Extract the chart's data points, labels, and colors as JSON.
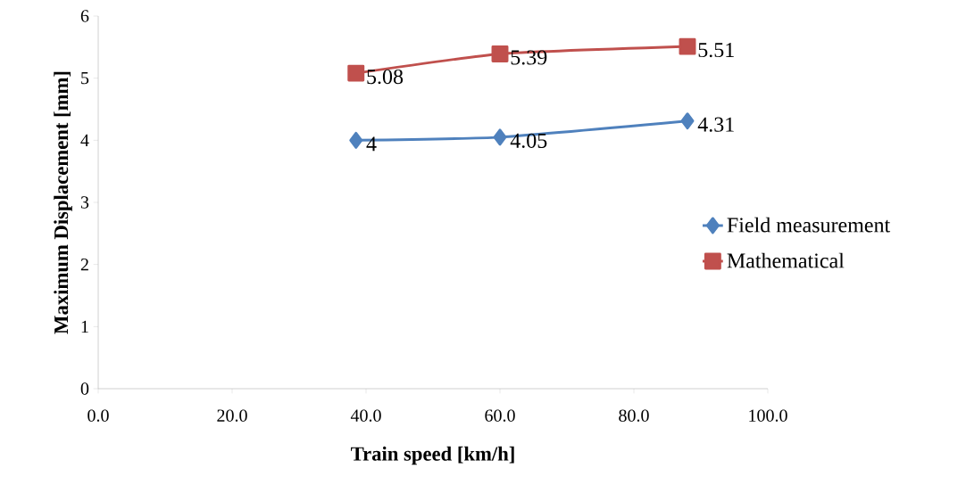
{
  "chart_data": {
    "type": "line",
    "xlabel": "Train speed [km/h]",
    "ylabel": "Maximum Displacement [mm]",
    "x": [
      38.5,
      60,
      88
    ],
    "series": [
      {
        "name": "Field measurement",
        "color": "#4f81bd",
        "marker": "diamond",
        "values": [
          4,
          4.05,
          4.31
        ]
      },
      {
        "name": "Mathematical",
        "color": "#c0504d",
        "marker": "square",
        "values": [
          5.08,
          5.39,
          5.51
        ]
      }
    ],
    "xlim": [
      0,
      100
    ],
    "xticks": [
      {
        "value": 0,
        "label": "0.0"
      },
      {
        "value": 20,
        "label": "20.0"
      },
      {
        "value": 40,
        "label": "40.0"
      },
      {
        "value": 60,
        "label": "60.0"
      },
      {
        "value": 80,
        "label": "80.0"
      },
      {
        "value": 100,
        "label": "100.0"
      }
    ],
    "ylim": [
      0,
      6
    ],
    "yticks": [
      0,
      1,
      2,
      3,
      4,
      5,
      6
    ],
    "data_labels": true,
    "grid": false,
    "legend": "right",
    "line_style": "solid"
  }
}
